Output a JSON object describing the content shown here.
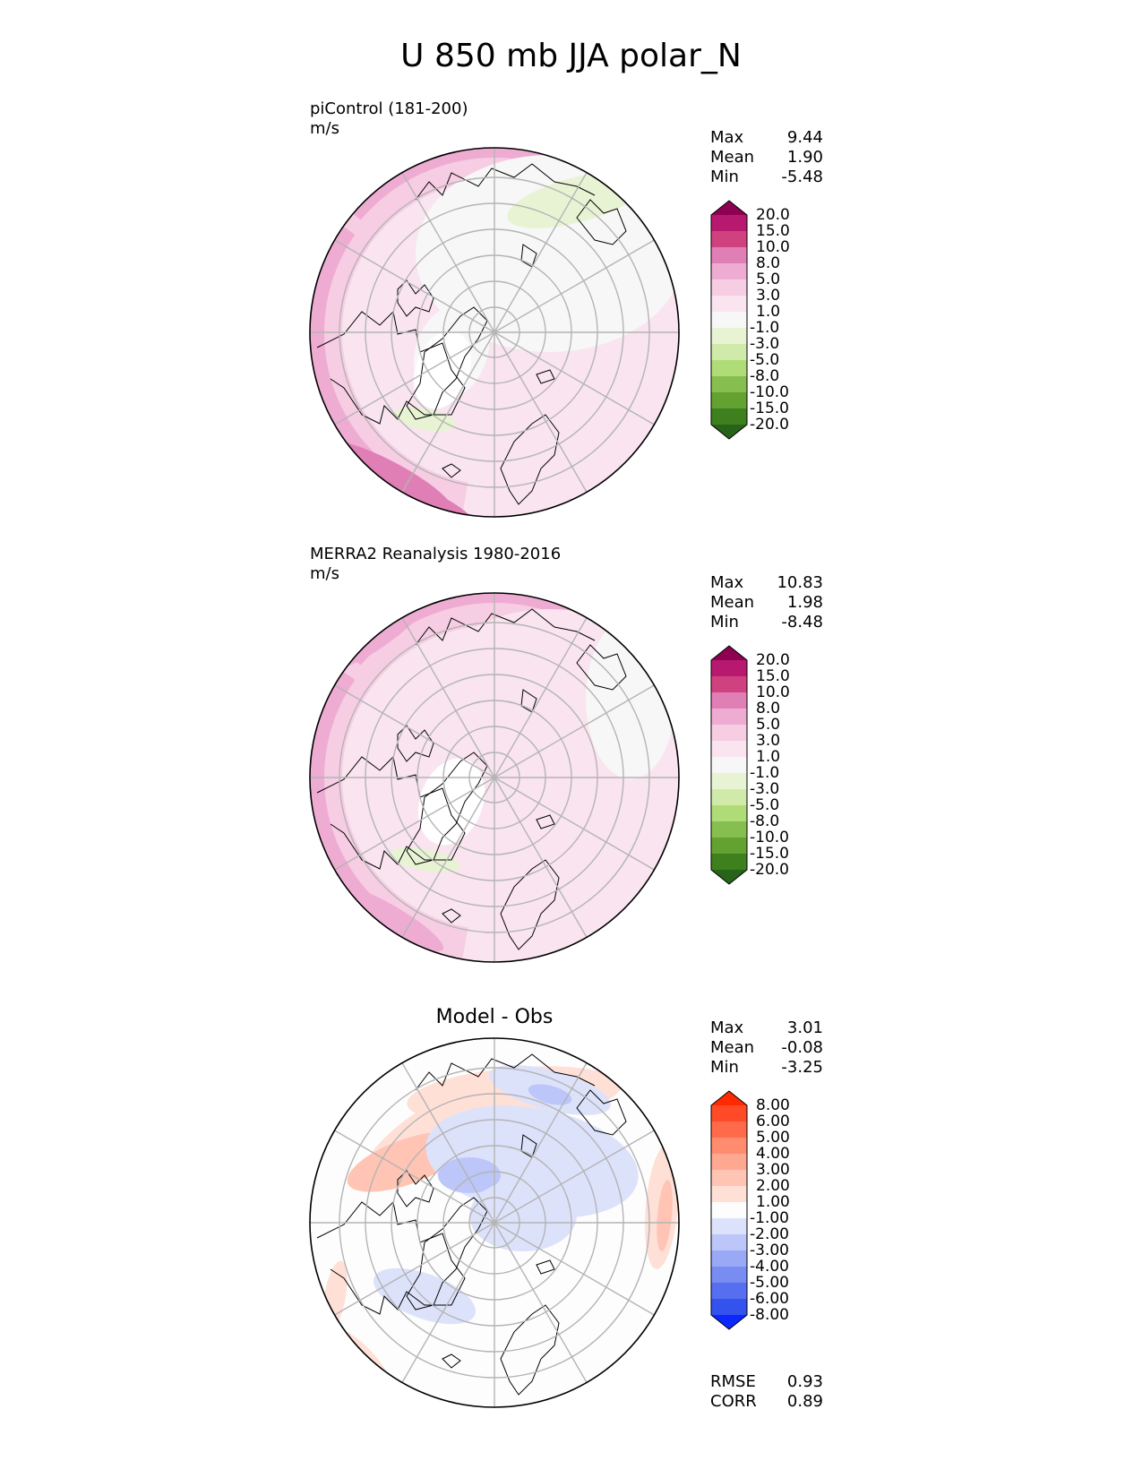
{
  "title": "U 850 mb JJA polar_N",
  "panels": [
    {
      "id": "model",
      "label": "piControl (181-200)",
      "units": "m/s",
      "stats": [
        {
          "name": "Max",
          "value": "9.44"
        },
        {
          "name": "Mean",
          "value": "1.90"
        },
        {
          "name": "Min",
          "value": "-5.48"
        }
      ],
      "colorbar_levels": [
        "20.0",
        "15.0",
        "10.0",
        "8.0",
        "5.0",
        "3.0",
        "1.0",
        "-1.0",
        "-3.0",
        "-5.0",
        "-8.0",
        "-10.0",
        "-15.0",
        "-20.0"
      ],
      "colorbar_colors": [
        "#8e0152",
        "#b7196e",
        "#d0427f",
        "#e07fb6",
        "#efacd3",
        "#f6cde3",
        "#f9e4ef",
        "#f7f7f7",
        "#e8f3d4",
        "#d0eaaa",
        "#afdc77",
        "#86bf4f",
        "#63a231",
        "#3e7f1e",
        "#276419"
      ]
    },
    {
      "id": "obs",
      "label": "MERRA2 Reanalysis 1980-2016",
      "units": "m/s",
      "stats": [
        {
          "name": "Max",
          "value": "10.83"
        },
        {
          "name": "Mean",
          "value": "1.98"
        },
        {
          "name": "Min",
          "value": "-8.48"
        }
      ],
      "colorbar_levels": [
        "20.0",
        "15.0",
        "10.0",
        "8.0",
        "5.0",
        "3.0",
        "1.0",
        "-1.0",
        "-3.0",
        "-5.0",
        "-8.0",
        "-10.0",
        "-15.0",
        "-20.0"
      ],
      "colorbar_colors": [
        "#8e0152",
        "#b7196e",
        "#d0427f",
        "#e07fb6",
        "#efacd3",
        "#f6cde3",
        "#f9e4ef",
        "#f7f7f7",
        "#e8f3d4",
        "#d0eaaa",
        "#afdc77",
        "#86bf4f",
        "#63a231",
        "#3e7f1e",
        "#276419"
      ]
    },
    {
      "id": "diff",
      "label": "Model - Obs",
      "stats": [
        {
          "name": "Max",
          "value": "3.01"
        },
        {
          "name": "Mean",
          "value": "-0.08"
        },
        {
          "name": "Min",
          "value": "-3.25"
        }
      ],
      "colorbar_levels": [
        "8.00",
        "6.00",
        "5.00",
        "4.00",
        "3.00",
        "2.00",
        "1.00",
        "-1.00",
        "-2.00",
        "-3.00",
        "-4.00",
        "-5.00",
        "-6.00",
        "-8.00"
      ],
      "colorbar_colors": [
        "#ff2a00",
        "#ff4a28",
        "#ff6a4a",
        "#ff8c6e",
        "#ffa891",
        "#ffc4b3",
        "#ffe0d6",
        "#fdfdfd",
        "#dde2fb",
        "#bcc6f8",
        "#9aa9f5",
        "#788cf2",
        "#566ff0",
        "#3452ee",
        "#0a28ff"
      ],
      "metrics": [
        {
          "name": "RMSE",
          "value": "0.93"
        },
        {
          "name": "CORR",
          "value": "0.89"
        }
      ]
    }
  ],
  "chart_data": {
    "type": "heatmap",
    "projection": "north polar stereographic",
    "variable": "U 850 mb",
    "season": "JJA",
    "grid": true
  }
}
